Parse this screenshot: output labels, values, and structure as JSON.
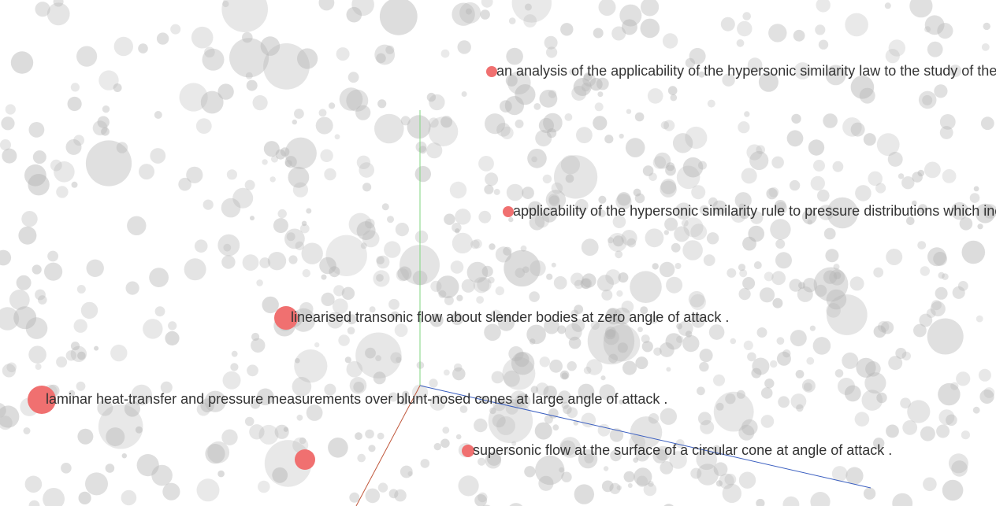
{
  "colors": {
    "background": "#ffffff",
    "point": "#b4b4b4",
    "highlight": "#f07070",
    "axis_y": "#7fd67f",
    "axis_z": "#3b5fc0",
    "axis_x": "#c0573b",
    "label_text": "#333333"
  },
  "highlighted_points": [
    {
      "label": "an analysis of the applicability of the hypersonic similarity law to the study of the flow about bodies of revolution at zero angle of attack ."
    },
    {
      "label": "applicability of the hypersonic similarity rule to pressure distributions which include the effects of rotation for bodies of revolution at zero angle of attack ."
    },
    {
      "label": "linearised transonic flow about slender bodies at zero angle of attack ."
    },
    {
      "label": "laminar heat-transfer and pressure measurements over blunt-nosed cones at large angle of attack ."
    },
    {
      "label": ""
    },
    {
      "label": "supersonic flow at the surface of a circular cone at angle of attack ."
    }
  ]
}
